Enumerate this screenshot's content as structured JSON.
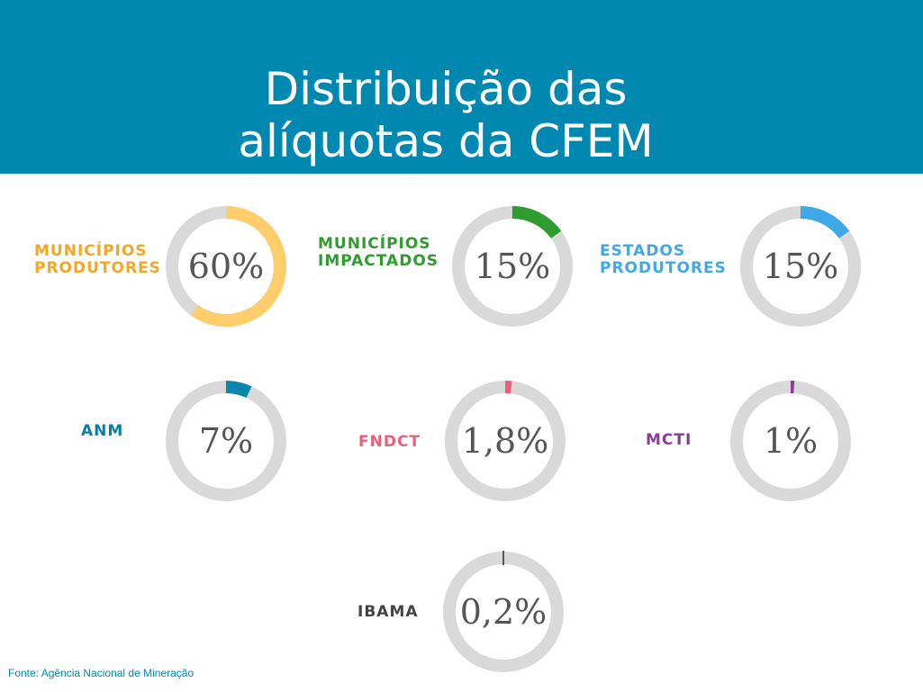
{
  "title": {
    "line1": "Distribuição das",
    "line2": "alíquotas da CFEM"
  },
  "source": "Fonte: Agência Nacional de Mineração",
  "colors": {
    "header": "#0088b0",
    "track": "#d9d9d9"
  },
  "chart_data": {
    "type": "donut",
    "title": "Distribuição das alíquotas da CFEM",
    "items": [
      {
        "id": "municipios-produtores",
        "label_lines": [
          "MUNICÍPIOS",
          "PRODUTORES"
        ],
        "value": 60,
        "value_label": "60%",
        "color": "#ffcd6b",
        "label_color": "#f5a623"
      },
      {
        "id": "municipios-impactados",
        "label_lines": [
          "MUNICÍPIOS",
          "IMPACTADOS"
        ],
        "value": 15,
        "value_label": "15%",
        "color": "#2e9c2e",
        "label_color": "#2e9c2e"
      },
      {
        "id": "estados-produtores",
        "label_lines": [
          "ESTADOS",
          "PRODUTORES"
        ],
        "value": 15,
        "value_label": "15%",
        "color": "#3fa9e8",
        "label_color": "#3fa9e8"
      },
      {
        "id": "anm",
        "label_lines": [
          "ANM"
        ],
        "value": 7,
        "value_label": "7%",
        "color": "#0a86ad",
        "label_color": "#0a7fa6"
      },
      {
        "id": "fndct",
        "label_lines": [
          "FNDCT"
        ],
        "value": 1.8,
        "value_label": "1,8%",
        "color": "#e8607a",
        "label_color": "#e8607a"
      },
      {
        "id": "mcti",
        "label_lines": [
          "MCTI"
        ],
        "value": 1,
        "value_label": "1%",
        "color": "#8e3a9c",
        "label_color": "#8e3a9c"
      },
      {
        "id": "ibama",
        "label_lines": [
          "IBAMA"
        ],
        "value": 0.2,
        "value_label": "0,2%",
        "color": "#222222",
        "label_color": "#444444"
      }
    ]
  }
}
